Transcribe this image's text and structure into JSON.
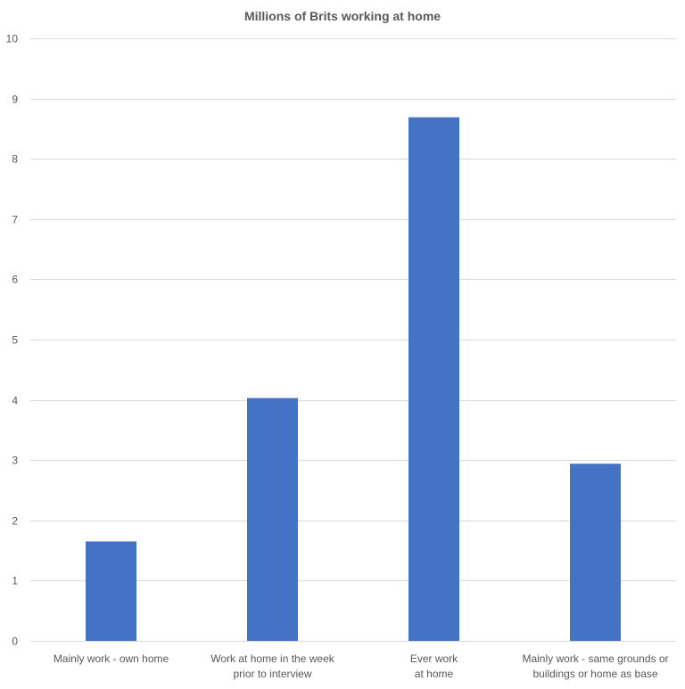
{
  "chart_data": {
    "type": "bar",
    "title": "Millions of Brits working at home",
    "xlabel": "",
    "ylabel": "",
    "ylim": [
      0,
      10
    ],
    "yticks": [
      0,
      1,
      2,
      3,
      4,
      5,
      6,
      7,
      8,
      9,
      10
    ],
    "grid": true,
    "legend": "none",
    "bar_color": "#4472c4",
    "categories": [
      [
        "Mainly work - own home"
      ],
      [
        "Work at home in the week",
        "prior to interview"
      ],
      [
        "Ever work",
        "at home"
      ],
      [
        "Mainly work - same grounds or",
        "buildings or home as base"
      ]
    ],
    "values": [
      1.65,
      4.03,
      8.69,
      2.94
    ]
  }
}
